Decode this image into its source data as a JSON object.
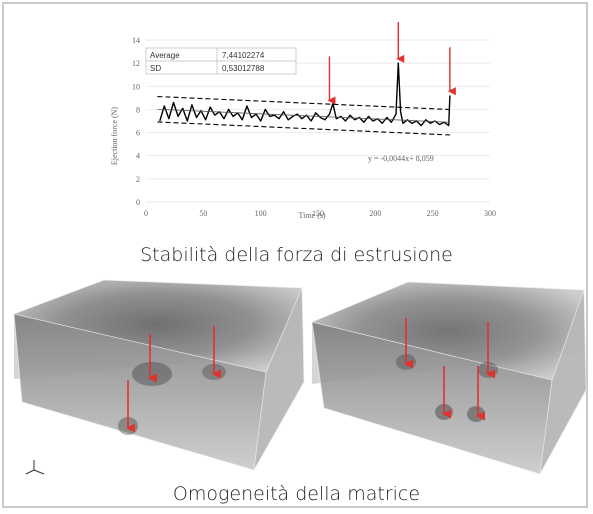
{
  "captions": {
    "top": "Stabilità della forza di estrusione",
    "bottom": "Omogeneità della matrice"
  },
  "colors": {
    "arrow": "#e0322f",
    "line": "#000000",
    "caption": "#222222"
  },
  "chart_data": {
    "type": "line",
    "xlabel": "Time (s)",
    "ylabel": "Ejection force (N)",
    "xlim": [
      0,
      300
    ],
    "ylim": [
      0,
      14
    ],
    "xticks": [
      "0",
      "50",
      "100",
      "150",
      "200",
      "250",
      "300"
    ],
    "yticks": [
      "0",
      "2",
      "4",
      "6",
      "8",
      "10",
      "12",
      "14"
    ],
    "stats": [
      {
        "label": "Average",
        "value": "7,44102274"
      },
      {
        "label": "SD",
        "value": "0,53012788"
      }
    ],
    "trendline_equation": "y = -0,0044x+ 8,059",
    "trendline": {
      "slope": -0.0044,
      "intercept": 8.059
    },
    "band_offset": 1.1,
    "series": [
      {
        "x": [
          12,
          16,
          20,
          24,
          28,
          32,
          36,
          40,
          44,
          48,
          52,
          56,
          60,
          64,
          68,
          72,
          76,
          80,
          84,
          88,
          92,
          96,
          100,
          104,
          108,
          112,
          116,
          120,
          124,
          128,
          132,
          136,
          140,
          144,
          148,
          152,
          156,
          160,
          163,
          166,
          170,
          174,
          178,
          182,
          186,
          190,
          194,
          198,
          202,
          206,
          210,
          214,
          218,
          220,
          222,
          224,
          228,
          232,
          236,
          240,
          244,
          248,
          252,
          256,
          260,
          264,
          265
        ],
        "y": [
          7.0,
          8.3,
          7.2,
          8.6,
          7.4,
          8.1,
          7.0,
          8.4,
          7.3,
          7.9,
          7.1,
          8.2,
          7.5,
          7.8,
          7.2,
          8.0,
          7.4,
          7.7,
          7.1,
          8.3,
          7.3,
          7.6,
          7.0,
          8.0,
          7.4,
          7.5,
          7.2,
          7.8,
          7.1,
          7.4,
          7.6,
          7.2,
          7.5,
          7.0,
          7.7,
          7.3,
          7.1,
          7.6,
          8.5,
          7.2,
          7.4,
          7.0,
          7.5,
          7.1,
          7.3,
          6.9,
          7.4,
          7.0,
          7.2,
          6.8,
          7.3,
          6.9,
          7.6,
          12.0,
          7.8,
          6.8,
          7.1,
          6.8,
          7.0,
          6.6,
          7.1,
          6.8,
          7.0,
          6.7,
          6.9,
          6.6,
          9.2
        ]
      }
    ],
    "annotations": [
      {
        "x": 160,
        "y": 8.6
      },
      {
        "x": 220,
        "y": 12.2
      },
      {
        "x": 265,
        "y": 9.4
      }
    ]
  }
}
